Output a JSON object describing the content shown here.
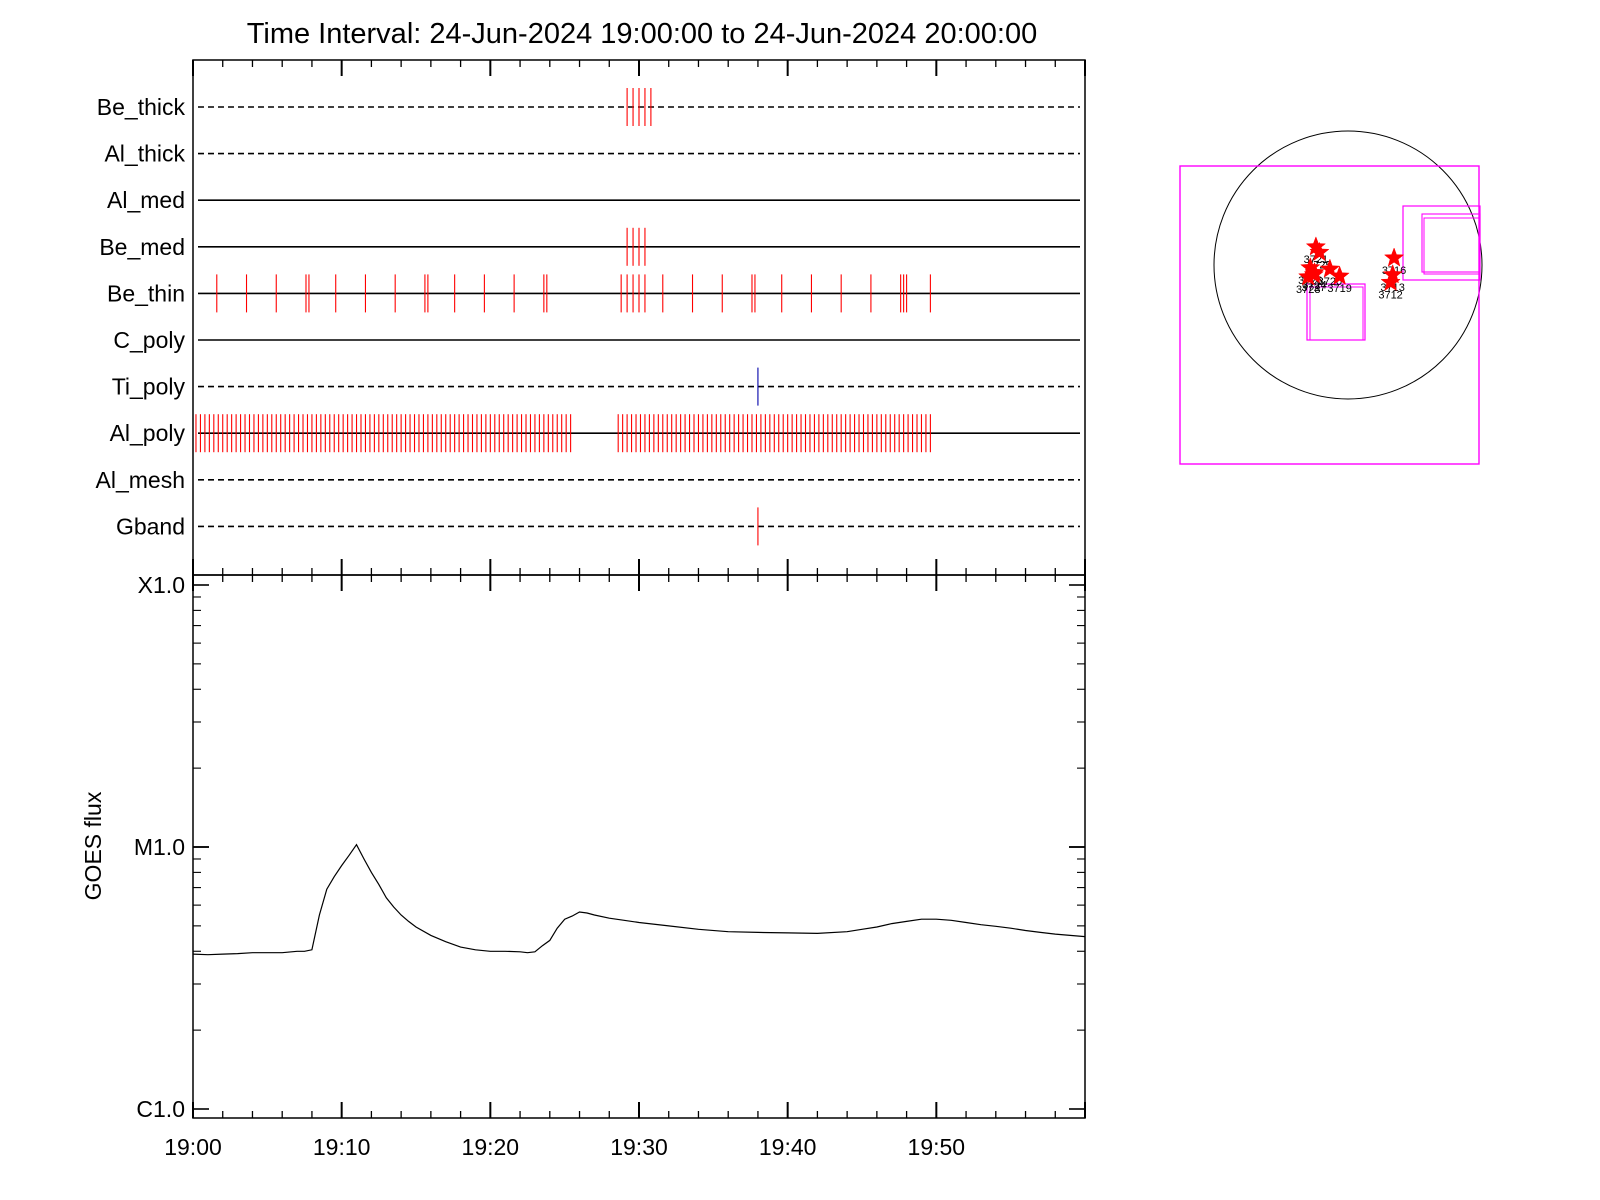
{
  "title": "Time Interval: 24-Jun-2024 19:00:00 to 24-Jun-2024 20:00:00",
  "colors": {
    "exposure": "#ff0000",
    "ti_poly": "#0000aa",
    "fov": "#ff00ff",
    "star": "#ff0000",
    "axis": "#000000"
  },
  "chart_data": [
    {
      "type": "timeline",
      "x_range_minutes": [
        0,
        60
      ],
      "x_tick_labels": [
        "19:00",
        "19:10",
        "19:20",
        "19:30",
        "19:40",
        "19:50"
      ],
      "x_tick_minutes": [
        0,
        10,
        20,
        30,
        40,
        50
      ],
      "filters": [
        {
          "name": "Be_thick",
          "line": "dashed",
          "color": "#ff0000",
          "exposures": [
            29.2,
            29.6,
            30.0,
            30.4,
            30.8
          ]
        },
        {
          "name": "Al_thick",
          "line": "dashed",
          "color": "#ff0000",
          "exposures": []
        },
        {
          "name": "Al_med",
          "line": "solid",
          "color": "#ff0000",
          "exposures": []
        },
        {
          "name": "Be_med",
          "line": "solid",
          "color": "#ff0000",
          "exposures": [
            29.2,
            29.6,
            30.0,
            30.4
          ]
        },
        {
          "name": "Be_thin",
          "line": "solid",
          "color": "#ff0000",
          "exposures": [
            1.6,
            3.6,
            5.6,
            7.6,
            7.8,
            9.6,
            11.6,
            13.6,
            15.6,
            15.8,
            17.6,
            19.6,
            21.6,
            23.6,
            23.8,
            28.8,
            29.2,
            29.6,
            30.0,
            30.4,
            31.6,
            33.6,
            35.6,
            37.6,
            37.8,
            39.6,
            41.6,
            43.6,
            45.6,
            47.6,
            47.8,
            48.0,
            49.6
          ]
        },
        {
          "name": "C_poly",
          "line": "solid",
          "color": "#ff0000",
          "exposures": []
        },
        {
          "name": "Ti_poly",
          "line": "dashed",
          "color": "#0000aa",
          "exposures": [
            38.0
          ]
        },
        {
          "name": "Al_poly",
          "line": "solid",
          "color": "#ff0000",
          "exposures": [
            0.2,
            0.5,
            0.8,
            1.1,
            1.4,
            1.7,
            2.0,
            2.3,
            2.6,
            2.9,
            3.2,
            3.5,
            3.8,
            4.1,
            4.4,
            4.7,
            5.0,
            5.3,
            5.6,
            5.9,
            6.2,
            6.5,
            6.8,
            7.1,
            7.4,
            7.7,
            8.0,
            8.3,
            8.6,
            8.9,
            9.2,
            9.5,
            9.8,
            10.1,
            10.4,
            10.7,
            11.0,
            11.3,
            11.6,
            11.9,
            12.2,
            12.5,
            12.8,
            13.1,
            13.4,
            13.7,
            14.0,
            14.3,
            14.6,
            14.9,
            15.2,
            15.5,
            15.8,
            16.1,
            16.4,
            16.7,
            17.0,
            17.3,
            17.6,
            17.9,
            18.2,
            18.5,
            18.8,
            19.1,
            19.4,
            19.7,
            20.0,
            20.3,
            20.6,
            20.9,
            21.2,
            21.5,
            21.8,
            22.1,
            22.4,
            22.7,
            23.0,
            23.3,
            23.6,
            23.9,
            24.2,
            24.5,
            24.8,
            25.1,
            25.4,
            28.6,
            28.9,
            29.2,
            29.5,
            29.8,
            30.1,
            30.4,
            30.7,
            31.0,
            31.3,
            31.6,
            31.9,
            32.2,
            32.5,
            32.8,
            33.1,
            33.4,
            33.7,
            34.0,
            34.3,
            34.6,
            34.9,
            35.2,
            35.5,
            35.8,
            36.1,
            36.4,
            36.7,
            37.0,
            37.3,
            37.6,
            37.9,
            38.2,
            38.5,
            38.8,
            39.1,
            39.4,
            39.7,
            40.0,
            40.3,
            40.6,
            40.9,
            41.2,
            41.5,
            41.8,
            42.1,
            42.4,
            42.7,
            43.0,
            43.3,
            43.6,
            43.9,
            44.2,
            44.5,
            44.8,
            45.1,
            45.4,
            45.7,
            46.0,
            46.3,
            46.6,
            46.9,
            47.2,
            47.5,
            47.8,
            48.1,
            48.4,
            48.7,
            49.0,
            49.3,
            49.6
          ]
        },
        {
          "name": "Al_mesh",
          "line": "dashed",
          "color": "#ff0000",
          "exposures": []
        },
        {
          "name": "Gband",
          "line": "dashed",
          "color": "#ff0000",
          "exposures": [
            38.0
          ]
        }
      ]
    },
    {
      "type": "line",
      "ylabel": "GOES flux",
      "yscale": "log",
      "ylim": [
        1e-06,
        0.0001
      ],
      "y_tick_labels": [
        "C1.0",
        "M1.0",
        "X1.0"
      ],
      "y_tick_values": [
        1e-06,
        1e-05,
        0.0001
      ],
      "x_range_minutes": [
        0,
        60
      ],
      "x_tick_labels": [
        "19:00",
        "19:10",
        "19:20",
        "19:30",
        "19:40",
        "19:50"
      ],
      "series": [
        {
          "color": "#000000",
          "x": [
            0,
            1,
            2,
            3,
            4,
            5,
            6,
            7,
            7.5,
            8,
            8.5,
            9,
            9.5,
            10,
            10.5,
            11,
            11.5,
            12,
            12.5,
            13,
            13.5,
            14,
            14.5,
            15,
            16,
            17,
            18,
            19,
            20,
            21,
            22,
            22.5,
            23,
            23.5,
            24,
            24.5,
            25,
            25.5,
            26,
            26.5,
            27,
            28,
            29,
            30,
            32,
            34,
            36,
            38,
            40,
            42,
            44,
            45,
            46,
            47,
            48,
            49,
            50,
            51,
            52,
            53,
            54,
            55,
            56,
            57,
            58,
            59,
            60
          ],
          "y": [
            3.9e-06,
            3.88e-06,
            3.9e-06,
            3.92e-06,
            3.95e-06,
            3.95e-06,
            3.95e-06,
            4e-06,
            4e-06,
            4.05e-06,
            5.5e-06,
            6.9e-06,
            7.7e-06,
            8.5e-06,
            9.3e-06,
            1.02e-05,
            9e-06,
            8e-06,
            7.2e-06,
            6.4e-06,
            5.9e-06,
            5.5e-06,
            5.2e-06,
            4.95e-06,
            4.6e-06,
            4.35e-06,
            4.15e-06,
            4.05e-06,
            4e-06,
            4e-06,
            3.98e-06,
            3.95e-06,
            3.98e-06,
            4.2e-06,
            4.4e-06,
            4.9e-06,
            5.3e-06,
            5.45e-06,
            5.65e-06,
            5.6e-06,
            5.5e-06,
            5.35e-06,
            5.25e-06,
            5.15e-06,
            5e-06,
            4.85e-06,
            4.75e-06,
            4.72e-06,
            4.7e-06,
            4.68e-06,
            4.75e-06,
            4.85e-06,
            4.95e-06,
            5.1e-06,
            5.2e-06,
            5.3e-06,
            5.3e-06,
            5.25e-06,
            5.15e-06,
            5.05e-06,
            4.98e-06,
            4.9e-06,
            4.8e-06,
            4.72e-06,
            4.65e-06,
            4.6e-06,
            4.55e-06
          ]
        }
      ]
    },
    {
      "type": "scatter",
      "description_word": "sun-context-map",
      "active_regions": [
        {
          "label": "3721",
          "x": -230,
          "y": 130
        },
        {
          "label": "3725",
          "x": -205,
          "y": 90
        },
        {
          "label": "3716",
          "x": 330,
          "y": 50
        },
        {
          "label": "3726",
          "x": -270,
          "y": -20
        },
        {
          "label": "3720",
          "x": -130,
          "y": -30
        },
        {
          "label": "3724",
          "x": -240,
          "y": -55
        },
        {
          "label": "3727",
          "x": -245,
          "y": -70
        },
        {
          "label": "3723",
          "x": -285,
          "y": -85
        },
        {
          "label": "3719",
          "x": -60,
          "y": -80
        },
        {
          "label": "3713",
          "x": 320,
          "y": -70
        },
        {
          "label": "3712",
          "x": 305,
          "y": -125
        }
      ]
    }
  ]
}
